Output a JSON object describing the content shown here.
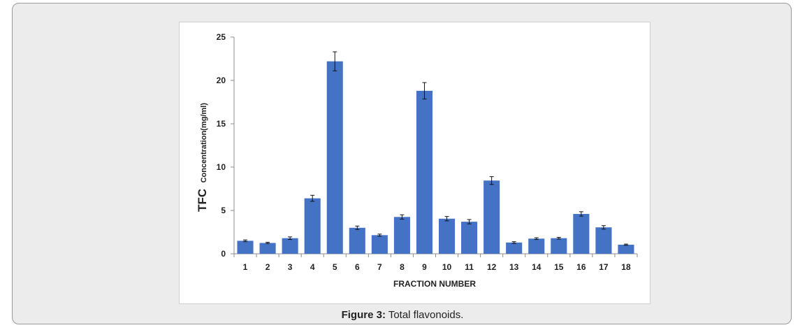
{
  "caption": {
    "label": "Figure 3:",
    "text": " Total flavonoids."
  },
  "chart_data": {
    "type": "bar",
    "categories": [
      "1",
      "2",
      "3",
      "4",
      "5",
      "6",
      "7",
      "8",
      "9",
      "10",
      "11",
      "12",
      "13",
      "14",
      "15",
      "16",
      "17",
      "18"
    ],
    "values": [
      1.5,
      1.25,
      1.8,
      6.4,
      22.2,
      3.0,
      2.15,
      4.25,
      18.8,
      4.05,
      3.7,
      8.45,
      1.3,
      1.75,
      1.8,
      4.6,
      3.05,
      1.05
    ],
    "errors": [
      0.1,
      0.08,
      0.15,
      0.35,
      1.1,
      0.2,
      0.12,
      0.25,
      0.95,
      0.25,
      0.25,
      0.45,
      0.1,
      0.1,
      0.1,
      0.25,
      0.2,
      0.07
    ],
    "xlabel": "FRACTION NUMBER",
    "ylabel_main": "TFC",
    "ylabel_sub": "Concentration(mg/ml)",
    "ylim": [
      0,
      25
    ],
    "yticks": [
      0,
      5,
      10,
      15,
      20,
      25
    ],
    "bar_color": "#4472c4",
    "grid": false
  }
}
